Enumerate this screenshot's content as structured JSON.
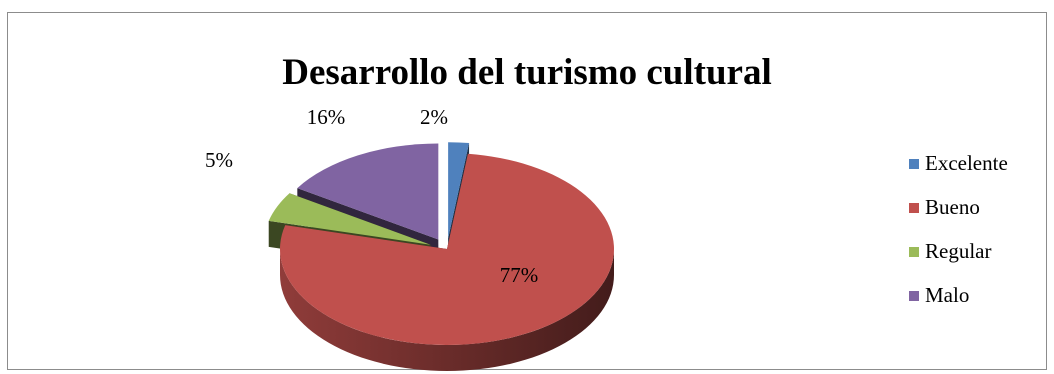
{
  "chart_data": {
    "type": "pie",
    "title": "Desarrollo del turismo cultural",
    "categories": [
      "Excelente",
      "Bueno",
      "Regular",
      "Malo"
    ],
    "values": [
      2,
      77,
      5,
      16
    ],
    "data_labels": [
      "2%",
      "77%",
      "5%",
      "16%"
    ],
    "colors": [
      "#4f81bd",
      "#c0504d",
      "#9bbb59",
      "#8064a2"
    ],
    "three_d": true,
    "exploded": true,
    "legend_position": "right"
  }
}
